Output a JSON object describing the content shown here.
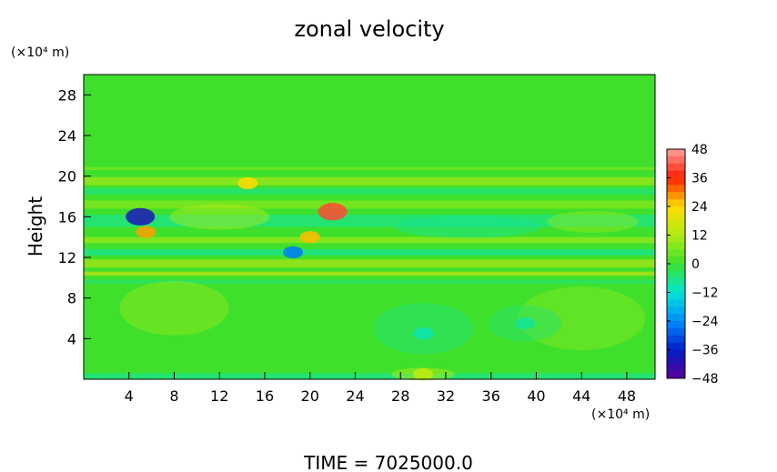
{
  "chart_data": {
    "type": "heatmap",
    "title": "zonal velocity",
    "xlabel": "",
    "ylabel": "Height",
    "x_unit": "(×10⁴ m)",
    "y_unit": "(×10⁴ m)",
    "xlim": [
      0,
      50.5
    ],
    "ylim": [
      0,
      30
    ],
    "x_ticks": [
      4,
      8,
      12,
      16,
      20,
      24,
      28,
      32,
      36,
      40,
      44,
      48
    ],
    "y_ticks": [
      4,
      8,
      12,
      16,
      20,
      24,
      28
    ],
    "colorbar": {
      "min": -48,
      "max": 48,
      "ticks": [
        48,
        36,
        24,
        12,
        0,
        -12,
        -24,
        -36,
        -48
      ],
      "tick_labels": [
        "48",
        "36",
        "24",
        "12",
        "0",
        "−12",
        "−24",
        "−36",
        "−48"
      ]
    },
    "field_features": [
      {
        "x": 5,
        "y": 16,
        "value": -40
      },
      {
        "x": 22,
        "y": 16.5,
        "value": 40
      },
      {
        "x": 5.5,
        "y": 14.5,
        "value": 28
      },
      {
        "x": 18.5,
        "y": 12.5,
        "value": -26
      },
      {
        "x": 20,
        "y": 14,
        "value": 26
      },
      {
        "x": 14.5,
        "y": 19.3,
        "value": 24
      },
      {
        "x": 30,
        "y": 4.5,
        "value": -10
      },
      {
        "x": 39,
        "y": 5.5,
        "value": -8
      },
      {
        "x": 30,
        "y": 0.5,
        "value": 14
      }
    ],
    "grid": false,
    "legend": "right colorbar"
  },
  "footer": {
    "time_label": "TIME  =  7025000.0"
  }
}
